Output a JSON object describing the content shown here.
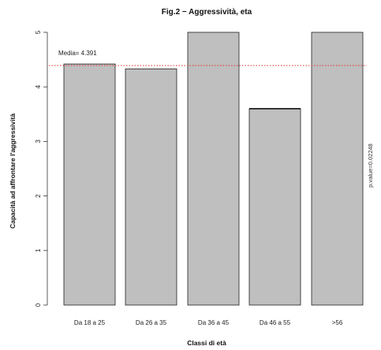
{
  "chart_data": {
    "type": "bar",
    "title": "Fig.2 − Aggressività, eta",
    "xlabel": "Classi di età",
    "ylabel": "Capacità ad affrontare l'aggressività",
    "categories": [
      "Da 18 a 25",
      "Da 26 a 35",
      "Da 36 a 45",
      "Da 46 a 55",
      ">56"
    ],
    "values": [
      4.42,
      4.33,
      5.0,
      3.6,
      5.0
    ],
    "ylim": [
      0,
      5
    ],
    "yticks": [
      "0",
      "1",
      "2",
      "3",
      "4",
      "5"
    ],
    "mean_label": "Media= 4.391",
    "mean_value": 4.391,
    "pvalue_label": "p.value=0.02248",
    "colors": {
      "bar_fill": "#bfbfbf",
      "bar_stroke": "#222222",
      "mean_line": "#e03030",
      "highlight_bar_top": "#000000"
    }
  }
}
